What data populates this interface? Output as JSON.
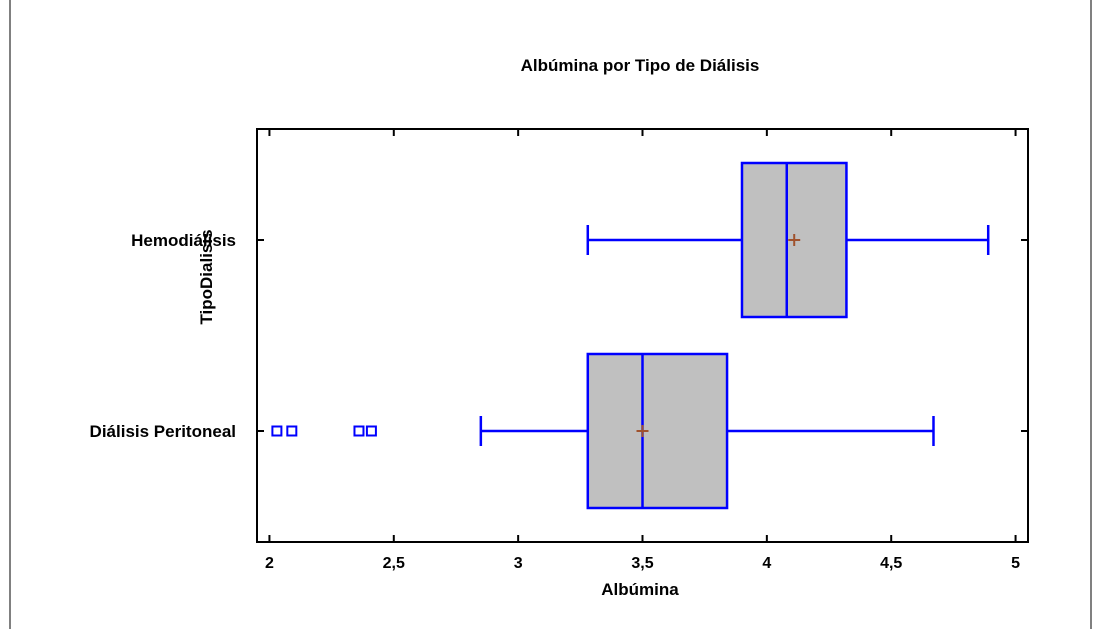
{
  "chart_data": {
    "type": "boxplot",
    "orientation": "horizontal",
    "title": "Albúmina por Tipo de Diálisis",
    "xlabel": "Albúmina",
    "ylabel": "TipoDialisis",
    "xlim": [
      1.95,
      5.05
    ],
    "xticks": [
      2,
      2.5,
      3,
      3.5,
      4,
      4.5,
      5
    ],
    "xtick_labels": [
      "2",
      "2,5",
      "3",
      "3,5",
      "4",
      "4,5",
      "5"
    ],
    "grid": false,
    "categories": [
      "Hemodiálisis",
      "Diálisis Peritoneal"
    ],
    "series": [
      {
        "category": "Hemodiálisis",
        "whisker_low": 3.28,
        "q1": 3.9,
        "median": 4.08,
        "q3": 4.32,
        "whisker_high": 4.89,
        "mean": 4.11,
        "outliers": []
      },
      {
        "category": "Diálisis Peritoneal",
        "whisker_low": 2.85,
        "q1": 3.28,
        "median": 3.5,
        "q3": 3.84,
        "whisker_high": 4.67,
        "mean": 3.5,
        "outliers": [
          2.03,
          2.09,
          2.36,
          2.41
        ]
      }
    ],
    "colors": {
      "box_fill": "#c0c0c0",
      "box_line": "#0000ff",
      "mean_marker": "#a0522d",
      "outlier": "#0000ff",
      "frame": "#000000"
    }
  }
}
